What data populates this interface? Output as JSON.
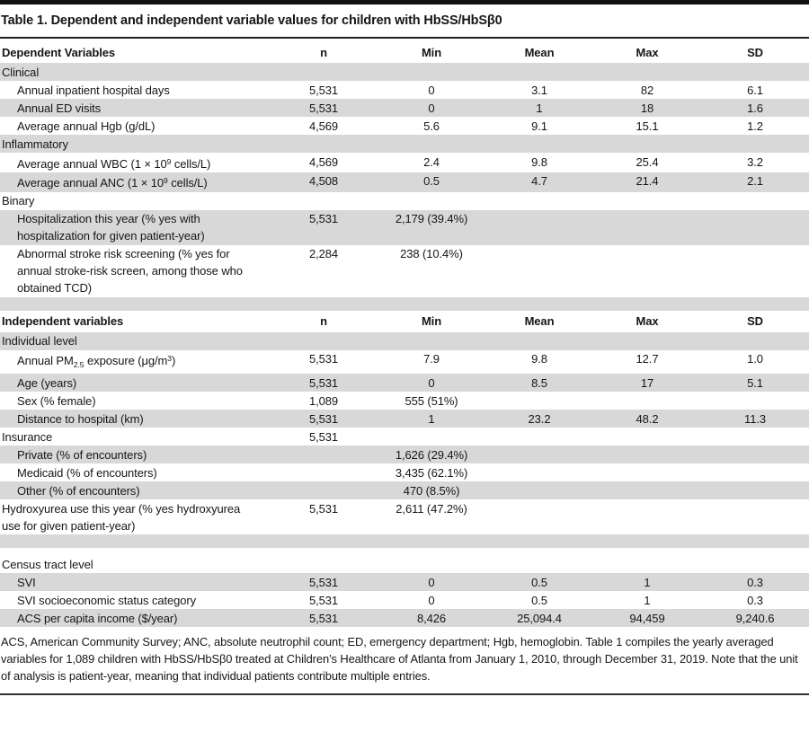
{
  "title": "Table 1. Dependent and independent variable values for children with HbSS/HbSβ0",
  "columns": [
    "n",
    "Min",
    "Mean",
    "Max",
    "SD"
  ],
  "tables": [
    {
      "header_label": "Dependent Variables",
      "rows": [
        {
          "type": "section",
          "label": "Clinical",
          "shaded": true
        },
        {
          "type": "data",
          "label": "Annual inpatient hospital days",
          "indent": true,
          "shaded": false,
          "cells": [
            "5,531",
            "0",
            "3.1",
            "82",
            "6.1"
          ]
        },
        {
          "type": "data",
          "label": "Annual ED visits",
          "indent": true,
          "shaded": true,
          "cells": [
            "5,531",
            "0",
            "1",
            "18",
            "1.6"
          ]
        },
        {
          "type": "data",
          "label": "Average annual Hgb (g/dL)",
          "indent": true,
          "shaded": false,
          "cells": [
            "4,569",
            "5.6",
            "9.1",
            "15.1",
            "1.2"
          ]
        },
        {
          "type": "section",
          "label": "Inflammatory",
          "shaded": true
        },
        {
          "type": "data",
          "label": "Average annual WBC (1 × 10<sup>9</sup> cells/L)",
          "indent": true,
          "shaded": false,
          "cells": [
            "4,569",
            "2.4",
            "9.8",
            "25.4",
            "3.2"
          ]
        },
        {
          "type": "data",
          "label": "Average annual ANC (1 × 10<sup>9</sup> cells/L)",
          "indent": true,
          "shaded": true,
          "cells": [
            "4,508",
            "0.5",
            "4.7",
            "21.4",
            "2.1"
          ]
        },
        {
          "type": "section",
          "label": "Binary",
          "shaded": false
        },
        {
          "type": "data",
          "label": "Hospitalization this year (% yes with hospitalization for given patient-year)",
          "indent": true,
          "shaded": true,
          "cells": [
            "5,531",
            "2,179 (39.4%)",
            "",
            "",
            ""
          ]
        },
        {
          "type": "data",
          "label": "Abnormal stroke risk screening (% yes for annual stroke-risk screen, among those who obtained TCD)",
          "indent": true,
          "shaded": false,
          "cells": [
            "2,284",
            "238 (10.4%)",
            "",
            "",
            ""
          ]
        },
        {
          "type": "spacer",
          "label": "",
          "shaded": true
        }
      ]
    },
    {
      "header_label": "Independent variables",
      "rows": [
        {
          "type": "section",
          "label": "Individual level",
          "shaded": true
        },
        {
          "type": "data",
          "label": "Annual PM<sub>2.5</sub> exposure (μg/m<sup>3</sup>)",
          "indent": true,
          "shaded": false,
          "cells": [
            "5,531",
            "7.9",
            "9.8",
            "12.7",
            "1.0"
          ]
        },
        {
          "type": "data",
          "label": "Age (years)",
          "indent": true,
          "shaded": true,
          "cells": [
            "5,531",
            "0",
            "8.5",
            "17",
            "5.1"
          ]
        },
        {
          "type": "data",
          "label": "Sex (% female)",
          "indent": true,
          "shaded": false,
          "cells": [
            "1,089",
            "555 (51%)",
            "",
            "",
            ""
          ]
        },
        {
          "type": "data",
          "label": "Distance to hospital (km)",
          "indent": true,
          "shaded": true,
          "cells": [
            "5,531",
            "1",
            "23.2",
            "48.2",
            "11.3"
          ]
        },
        {
          "type": "data",
          "label": "Insurance",
          "indent": false,
          "shaded": false,
          "cells": [
            "5,531",
            "",
            "",
            "",
            ""
          ]
        },
        {
          "type": "data",
          "label": "Private (% of encounters)",
          "indent": true,
          "shaded": true,
          "cells": [
            "",
            "1,626 (29.4%)",
            "",
            "",
            ""
          ]
        },
        {
          "type": "data",
          "label": "Medicaid (% of encounters)",
          "indent": true,
          "shaded": false,
          "cells": [
            "",
            "3,435 (62.1%)",
            "",
            "",
            ""
          ]
        },
        {
          "type": "data",
          "label": "Other (% of encounters)",
          "indent": true,
          "shaded": true,
          "cells": [
            "",
            "470 (8.5%)",
            "",
            "",
            ""
          ]
        },
        {
          "type": "data",
          "label": "Hydroxyurea use this year (% yes hydroxyurea use for given patient-year)",
          "indent": false,
          "shaded": false,
          "cells": [
            "5,531",
            "2,611 (47.2%)",
            "",
            "",
            ""
          ]
        },
        {
          "type": "spacer",
          "label": "",
          "shaded": true
        },
        {
          "type": "gap",
          "label": "",
          "shaded": false
        },
        {
          "type": "section",
          "label": "Census tract level",
          "shaded": false
        },
        {
          "type": "data",
          "label": "SVI",
          "indent": true,
          "shaded": true,
          "cells": [
            "5,531",
            "0",
            "0.5",
            "1",
            "0.3"
          ]
        },
        {
          "type": "data",
          "label": "SVI socioeconomic status category",
          "indent": true,
          "shaded": false,
          "cells": [
            "5,531",
            "0",
            "0.5",
            "1",
            "0.3"
          ]
        },
        {
          "type": "data",
          "label": "ACS per capita income ($/year)",
          "indent": true,
          "shaded": true,
          "cells": [
            "5,531",
            "8,426",
            "25,094.4",
            "94,459",
            "9,240.6"
          ]
        }
      ]
    }
  ],
  "footnote": "ACS, American Community Survey; ANC, absolute neutrophil count; ED, emergency department; Hgb, hemoglobin. Table 1 compiles the yearly averaged variables for 1,089 children with HbSS/HbSβ0 treated at Children’s Healthcare of Atlanta from January 1, 2010, through December 31, 2019. Note that the unit of analysis is patient-year, meaning that individual patients contribute multiple entries."
}
